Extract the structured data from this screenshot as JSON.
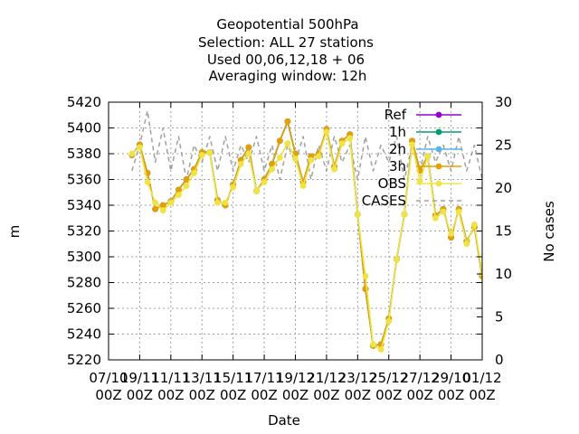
{
  "chart_data": {
    "type": "line",
    "title_lines": [
      "Geopotential 500hPa",
      "Selection: ALL      27 stations",
      "Used  00,06,12,18 + 06",
      "Averaging window: 12h"
    ],
    "xlabel": "Date",
    "ylabel": "m",
    "y2label": "No cases",
    "x_ticks": [
      {
        "t": 0,
        "line1": "07/10",
        "line2": "00Z"
      },
      {
        "t": 2,
        "line1": "19/11",
        "line2": "00Z"
      },
      {
        "t": 4,
        "line1": "11/11",
        "line2": "00Z"
      },
      {
        "t": 6,
        "line1": "13/11",
        "line2": "00Z"
      },
      {
        "t": 8,
        "line1": "15/11",
        "line2": "00Z"
      },
      {
        "t": 10,
        "line1": "17/11",
        "line2": "00Z"
      },
      {
        "t": 12,
        "line1": "19/12",
        "line2": "00Z"
      },
      {
        "t": 14,
        "line1": "21/12",
        "line2": "00Z"
      },
      {
        "t": 16,
        "line1": "23/12",
        "line2": "00Z"
      },
      {
        "t": 18,
        "line1": "25/12",
        "line2": "00Z"
      },
      {
        "t": 20,
        "line1": "27/12",
        "line2": "00Z"
      },
      {
        "t": 22,
        "line1": "29/10",
        "line2": "00Z"
      },
      {
        "t": 24,
        "line1": "01/12",
        "line2": "00Z"
      }
    ],
    "xlim": [
      0,
      24
    ],
    "ylim": [
      5220,
      5420
    ],
    "y_ticks": [
      5220,
      5240,
      5260,
      5280,
      5300,
      5320,
      5340,
      5360,
      5380,
      5400,
      5420
    ],
    "y2lim": [
      0,
      30
    ],
    "y2_ticks": [
      0,
      5,
      10,
      15,
      20,
      25,
      30
    ],
    "grid": true,
    "legend_position": "top-right",
    "x": [
      1.5,
      2.0,
      2.5,
      3.0,
      3.5,
      4.0,
      4.5,
      5.0,
      5.5,
      6.0,
      6.5,
      7.0,
      7.5,
      8.0,
      8.5,
      9.0,
      9.5,
      10.0,
      10.5,
      11.0,
      11.5,
      12.0,
      12.5,
      13.0,
      13.5,
      14.0,
      14.5,
      15.0,
      15.5,
      16.0,
      16.5,
      17.0,
      17.5,
      18.0,
      18.5,
      19.0,
      19.5,
      20.0,
      20.5,
      21.0,
      21.5,
      22.0,
      22.5,
      23.0,
      23.5,
      24.0
    ],
    "series": [
      {
        "name": "Ref",
        "color": "#9400d3",
        "marker": "circle",
        "style": "solid",
        "values": [
          5379,
          5387,
          5365,
          5337,
          5340,
          5343,
          5352,
          5360,
          5368,
          5381,
          5381,
          5344,
          5340,
          5356,
          5375,
          5385,
          5351,
          5360,
          5372,
          5390,
          5405,
          5380,
          5358,
          5378,
          5380,
          5399,
          5370,
          5390,
          5395,
          5333,
          5275,
          5231,
          5232,
          5252,
          5298,
          5333,
          5390,
          5367,
          5378,
          5332,
          5337,
          5315,
          5337,
          5312,
          5323,
          5285
        ]
      },
      {
        "name": "1h",
        "color": "#009e73",
        "marker": "circle",
        "style": "solid",
        "values": [
          5379,
          5387,
          5365,
          5337,
          5340,
          5343,
          5352,
          5360,
          5368,
          5381,
          5381,
          5344,
          5340,
          5356,
          5375,
          5385,
          5351,
          5360,
          5372,
          5390,
          5405,
          5380,
          5358,
          5378,
          5380,
          5399,
          5370,
          5390,
          5395,
          5333,
          5275,
          5231,
          5232,
          5252,
          5298,
          5333,
          5390,
          5367,
          5378,
          5332,
          5337,
          5315,
          5337,
          5312,
          5323,
          5285
        ]
      },
      {
        "name": "2h",
        "color": "#56b4e9",
        "marker": "star",
        "style": "solid",
        "values": [
          5379,
          5387,
          5365,
          5337,
          5340,
          5343,
          5352,
          5360,
          5368,
          5381,
          5381,
          5344,
          5340,
          5356,
          5375,
          5385,
          5351,
          5360,
          5372,
          5390,
          5405,
          5380,
          5358,
          5378,
          5380,
          5399,
          5370,
          5390,
          5395,
          5333,
          5275,
          5231,
          5232,
          5252,
          5298,
          5333,
          5390,
          5367,
          5378,
          5332,
          5337,
          5315,
          5337,
          5312,
          5323,
          5285
        ]
      },
      {
        "name": "3h",
        "color": "#e69f00",
        "marker": "circle",
        "style": "solid",
        "values": [
          5379,
          5387,
          5365,
          5337,
          5340,
          5343,
          5352,
          5360,
          5368,
          5381,
          5381,
          5344,
          5340,
          5356,
          5375,
          5385,
          5351,
          5360,
          5372,
          5390,
          5405,
          5380,
          5358,
          5378,
          5380,
          5399,
          5370,
          5390,
          5395,
          5333,
          5275,
          5231,
          5232,
          5252,
          5298,
          5333,
          5390,
          5367,
          5378,
          5332,
          5337,
          5315,
          5337,
          5312,
          5323,
          5285
        ]
      },
      {
        "name": "OBS",
        "color": "#f0e442",
        "marker": "circle",
        "style": "solid",
        "values": [
          5380,
          5385,
          5358,
          5342,
          5336,
          5342,
          5348,
          5355,
          5365,
          5379,
          5381,
          5342,
          5342,
          5354,
          5372,
          5380,
          5351,
          5358,
          5368,
          5377,
          5388,
          5376,
          5355,
          5375,
          5378,
          5397,
          5368,
          5388,
          5392,
          5333,
          5285,
          5232,
          5228,
          5250,
          5298,
          5333,
          5387,
          5359,
          5378,
          5330,
          5335,
          5318,
          5335,
          5310,
          5325,
          5287
        ]
      },
      {
        "name": "CASES",
        "color": "#a0a0a0",
        "style": "dashed",
        "axis": "y2",
        "values": [
          22,
          25,
          29,
          23,
          27,
          22,
          26,
          21,
          25,
          23,
          26,
          22,
          26,
          22,
          25,
          23,
          26,
          22,
          25,
          21,
          25,
          23,
          26,
          21,
          25,
          22,
          26,
          23,
          25,
          21,
          26,
          22,
          25,
          23,
          26,
          21,
          25,
          22,
          26,
          23,
          25,
          22,
          26,
          22,
          25,
          21
        ]
      }
    ]
  }
}
